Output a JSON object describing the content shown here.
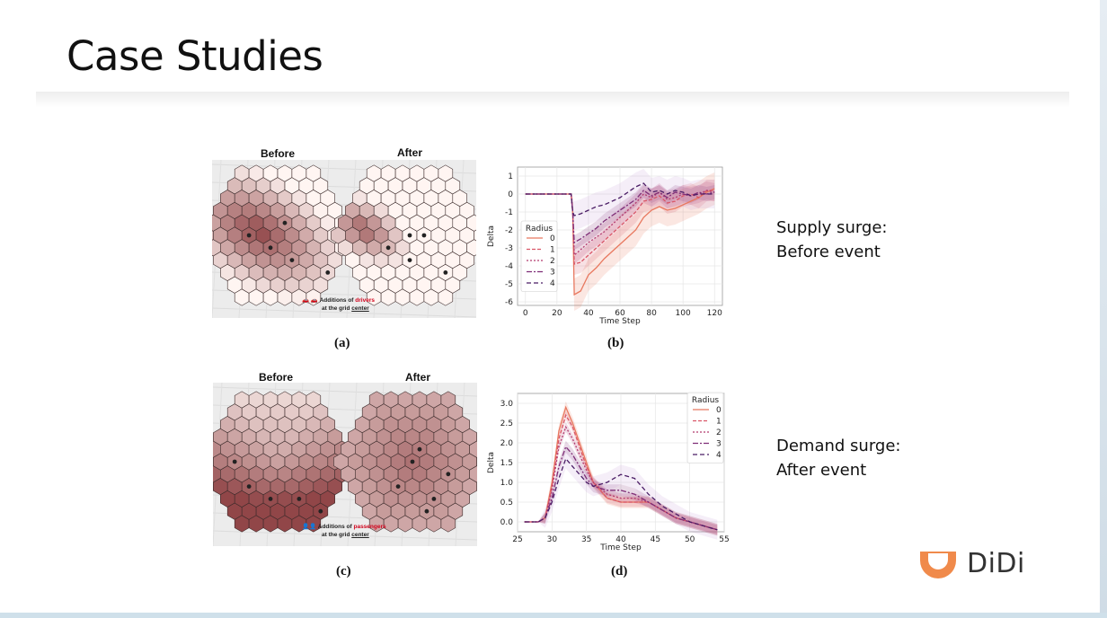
{
  "slide": {
    "title": "Case Studies"
  },
  "panels": [
    {
      "id": "a",
      "caption": "(a)",
      "before": "Before",
      "after": "After",
      "legend_line1_prefix": "Additions of ",
      "legend_word": "drivers",
      "legend_line2_prefix": "at the grid ",
      "legend_line2_word": "center"
    },
    {
      "id": "c",
      "caption": "(c)",
      "before": "Before",
      "after": "After",
      "legend_line1_prefix": "Additions of ",
      "legend_word": "passengers",
      "legend_line2_prefix": "at the grid ",
      "legend_line2_word": "center"
    }
  ],
  "captions": {
    "b": "(b)",
    "d": "(d)"
  },
  "side_labels": {
    "supply_line1": "Supply surge:",
    "supply_line2": "Before event",
    "demand_line1": "Demand surge:",
    "demand_line2": "After event"
  },
  "logo": {
    "name": "DiDi",
    "brand_color": "#f08a4b"
  },
  "colors": {
    "series": [
      "#e8785f",
      "#d95667",
      "#b23a6e",
      "#7e2d77",
      "#4b1d66"
    ],
    "band": "#c9a3d6"
  },
  "chart_data": [
    {
      "type": "line",
      "xlabel": "Time Step",
      "ylabel": "Delta",
      "xlim": [
        -5,
        125
      ],
      "ylim": [
        -6.2,
        1.5
      ],
      "xticks": [
        0,
        20,
        40,
        60,
        80,
        100,
        120
      ],
      "yticks": [
        1,
        0,
        -1,
        -2,
        -3,
        -4,
        -5,
        -6
      ],
      "grid": true,
      "legend": {
        "title": "Radius",
        "placement": "center-left"
      },
      "series": [
        {
          "name": "0",
          "x": [
            0,
            29,
            30,
            31,
            35,
            40,
            45,
            50,
            55,
            60,
            65,
            70,
            75,
            80,
            85,
            90,
            95,
            100,
            105,
            110,
            115,
            120
          ],
          "values": [
            0,
            0,
            -1.0,
            -5.6,
            -5.4,
            -4.5,
            -4.1,
            -3.6,
            -3.2,
            -2.8,
            -2.4,
            -2.0,
            -1.3,
            -0.9,
            -0.7,
            -0.9,
            -0.8,
            -0.6,
            -0.4,
            -0.2,
            0.1,
            0.3
          ]
        },
        {
          "name": "1",
          "x": [
            0,
            29,
            30,
            31,
            35,
            40,
            45,
            50,
            55,
            60,
            65,
            70,
            75,
            80,
            85,
            90,
            95,
            100,
            105,
            110,
            115,
            120
          ],
          "values": [
            0,
            0,
            -1.0,
            -3.9,
            -3.8,
            -3.4,
            -3.0,
            -2.6,
            -2.2,
            -1.8,
            -1.4,
            -1.0,
            -0.4,
            -0.3,
            -0.1,
            -0.5,
            -0.4,
            -0.1,
            0.0,
            -0.2,
            0.2,
            0.2
          ]
        },
        {
          "name": "2",
          "x": [
            0,
            29,
            30,
            31,
            35,
            40,
            45,
            50,
            55,
            60,
            65,
            70,
            75,
            80,
            85,
            90,
            95,
            100,
            105,
            110,
            115,
            120
          ],
          "values": [
            0,
            0,
            -1.0,
            -3.4,
            -3.1,
            -2.7,
            -2.4,
            -2.1,
            -1.7,
            -1.3,
            -0.9,
            -0.5,
            0.0,
            -0.2,
            0.1,
            -0.3,
            -0.2,
            0.0,
            -0.1,
            0.0,
            0.2,
            0.1
          ]
        },
        {
          "name": "3",
          "x": [
            0,
            29,
            30,
            31,
            35,
            40,
            45,
            50,
            55,
            60,
            65,
            70,
            75,
            80,
            85,
            90,
            95,
            100,
            105,
            110,
            115,
            120
          ],
          "values": [
            0,
            0,
            -1.0,
            -2.7,
            -2.5,
            -2.2,
            -1.9,
            -1.5,
            -1.2,
            -0.9,
            -0.6,
            -0.3,
            0.2,
            -0.1,
            0.1,
            -0.2,
            0.1,
            0.0,
            -0.1,
            0.1,
            0.0,
            0.1
          ]
        },
        {
          "name": "4",
          "x": [
            0,
            29,
            30,
            31,
            35,
            40,
            45,
            50,
            55,
            60,
            65,
            70,
            75,
            80,
            85,
            90,
            95,
            100,
            105,
            110,
            115,
            120
          ],
          "values": [
            0,
            0,
            -1.0,
            -1.2,
            -1.1,
            -0.9,
            -0.7,
            -0.6,
            -0.4,
            -0.2,
            0.1,
            0.4,
            0.6,
            0.1,
            0.2,
            0.0,
            0.2,
            0.1,
            -0.1,
            0.0,
            0.0,
            0.0
          ]
        }
      ]
    },
    {
      "type": "line",
      "xlabel": "Time Step",
      "ylabel": "Delta",
      "xlim": [
        25,
        55
      ],
      "ylim": [
        -0.25,
        3.25
      ],
      "xticks": [
        25,
        30,
        35,
        40,
        45,
        50,
        55
      ],
      "yticks": [
        3.0,
        2.5,
        2.0,
        1.5,
        1.0,
        0.5,
        0.0
      ],
      "grid": true,
      "legend": {
        "title": "Radius",
        "placement": "top-right"
      },
      "series": [
        {
          "name": "0",
          "x": [
            26,
            28,
            29,
            30,
            31,
            32,
            33,
            34,
            35,
            36,
            38,
            40,
            42,
            44,
            46,
            48,
            50,
            52,
            54
          ],
          "values": [
            0,
            0,
            0.1,
            1.0,
            2.3,
            2.9,
            2.5,
            2.0,
            1.5,
            1.0,
            0.6,
            0.5,
            0.5,
            0.5,
            0.3,
            0.1,
            0.0,
            -0.1,
            -0.2
          ]
        },
        {
          "name": "1",
          "x": [
            26,
            28,
            29,
            30,
            31,
            32,
            33,
            34,
            35,
            36,
            38,
            40,
            42,
            44,
            46,
            48,
            50,
            52,
            54
          ],
          "values": [
            0,
            0,
            0.1,
            0.9,
            2.1,
            2.7,
            2.4,
            1.9,
            1.4,
            1.0,
            0.6,
            0.5,
            0.5,
            0.5,
            0.3,
            0.1,
            0.0,
            -0.1,
            -0.2
          ]
        },
        {
          "name": "2",
          "x": [
            26,
            28,
            29,
            30,
            31,
            32,
            33,
            34,
            35,
            36,
            38,
            40,
            42,
            44,
            46,
            48,
            50,
            52,
            54
          ],
          "values": [
            0,
            0,
            0.1,
            0.8,
            1.9,
            2.4,
            2.1,
            1.7,
            1.3,
            1.0,
            0.7,
            0.6,
            0.6,
            0.5,
            0.3,
            0.1,
            0.0,
            -0.1,
            -0.2
          ]
        },
        {
          "name": "3",
          "x": [
            26,
            28,
            29,
            30,
            31,
            32,
            33,
            34,
            35,
            36,
            38,
            40,
            42,
            44,
            46,
            48,
            50,
            52,
            54
          ],
          "values": [
            0,
            0,
            0.1,
            0.6,
            1.4,
            1.9,
            1.7,
            1.4,
            1.1,
            0.9,
            0.8,
            0.8,
            0.7,
            0.5,
            0.3,
            0.1,
            0.0,
            -0.1,
            -0.2
          ]
        },
        {
          "name": "4",
          "x": [
            26,
            28,
            29,
            30,
            31,
            32,
            33,
            34,
            35,
            36,
            38,
            40,
            42,
            44,
            46,
            48,
            50,
            52,
            54
          ],
          "values": [
            0,
            0,
            0.1,
            0.5,
            1.1,
            1.6,
            1.4,
            1.2,
            1.0,
            0.9,
            1.0,
            1.2,
            1.1,
            0.7,
            0.4,
            0.2,
            0.0,
            -0.1,
            -0.2
          ]
        }
      ]
    }
  ]
}
